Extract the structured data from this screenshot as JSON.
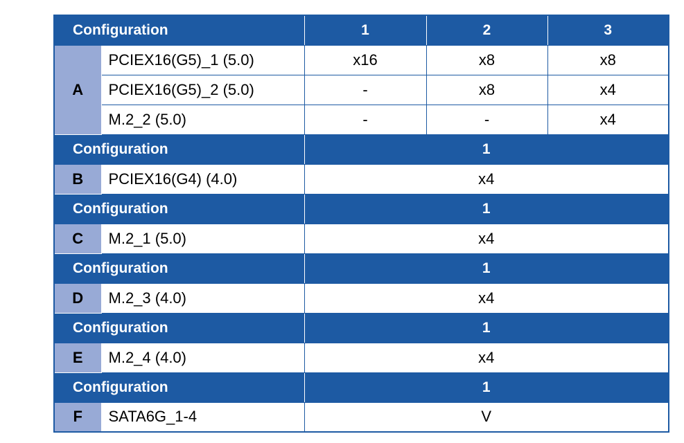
{
  "table": {
    "header_label": "Configuration",
    "sections": [
      {
        "letter": "A",
        "config_numbers": [
          "1",
          "2",
          "3"
        ],
        "rows": [
          {
            "slot": "PCIEX16(G5)_1 (5.0)",
            "values": [
              "x16",
              "x8",
              "x8"
            ]
          },
          {
            "slot": "PCIEX16(G5)_2 (5.0)",
            "values": [
              "-",
              "x8",
              "x4"
            ]
          },
          {
            "slot": "M.2_2 (5.0)",
            "values": [
              "-",
              "-",
              "x4"
            ]
          }
        ]
      },
      {
        "letter": "B",
        "config_numbers": [
          "1"
        ],
        "rows": [
          {
            "slot": "PCIEX16(G4) (4.0)",
            "values": [
              "x4"
            ]
          }
        ]
      },
      {
        "letter": "C",
        "config_numbers": [
          "1"
        ],
        "rows": [
          {
            "slot": "M.2_1 (5.0)",
            "values": [
              "x4"
            ]
          }
        ]
      },
      {
        "letter": "D",
        "config_numbers": [
          "1"
        ],
        "rows": [
          {
            "slot": "M.2_3 (4.0)",
            "values": [
              "x4"
            ]
          }
        ]
      },
      {
        "letter": "E",
        "config_numbers": [
          "1"
        ],
        "rows": [
          {
            "slot": "M.2_4 (4.0)",
            "values": [
              "x4"
            ]
          }
        ]
      },
      {
        "letter": "F",
        "config_numbers": [
          "1"
        ],
        "rows": [
          {
            "slot": "SATA6G_1-4",
            "values": [
              "V"
            ]
          }
        ]
      }
    ]
  },
  "colors": {
    "header_blue": "#1d5aa3",
    "group_cell": "#98aad6",
    "body_background": "#ffffff"
  }
}
